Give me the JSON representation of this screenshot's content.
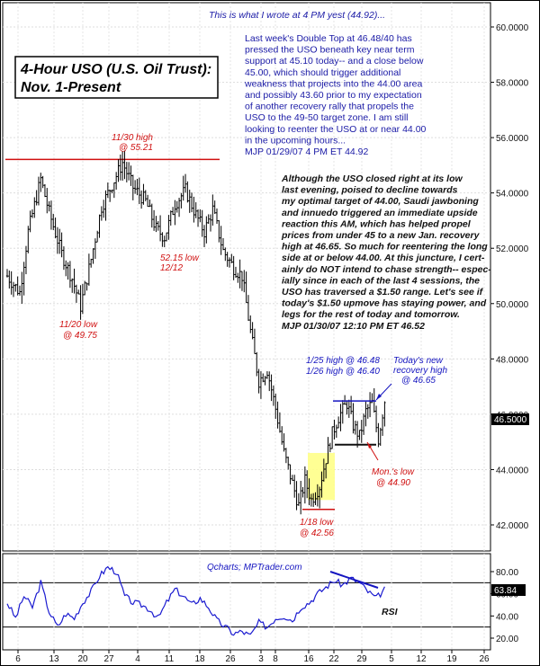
{
  "title": {
    "line1": "4-Hour USO (U.S. Oil Trust):",
    "line2": "Nov. 1-Present"
  },
  "annotation_top": {
    "header": "This is what I wrote at 4 PM yest (44.92)...",
    "lines": [
      "Last week's Double Top at 46.48/40 has",
      "pressed the USO beneath key near term",
      "support at 45.10 today-- and a close below",
      "45.00, which should trigger additional",
      "weakness that projects into the 44.00 area",
      "and possibly 43.60 prior to my expectation",
      "of another recovery rally that propels the",
      "USO to the 49-50 target zone. I am still",
      "looking to reenter the USO at or near 44.00",
      "in the upcoming hours...",
      "MJP  01/29/07 4 PM ET  44.92"
    ]
  },
  "annotation_mid": {
    "lines": [
      "Although the USO closed right at its low",
      "last evening, poised to decline towards",
      "my optimal target of 44.00, Saudi jawboning",
      "and innuedo triggered an immediate upside",
      "reaction this AM, which has helped propel",
      "prices from under 45 to a new Jan. recovery",
      "high at 46.65.  So much for reentering the long",
      "side at or below 44.00. At this juncture, I cert-",
      "ainly do NOT intend to chase strength-- espec-",
      "ially since in each of the last 4 sessions, the",
      "USO has traversed a $1.50 range. Let's see if",
      "today's $1.50 upmove has staying power, and",
      "legs for the rest of today and tomorrow.",
      "MJP  01/30/07 12:10 PM ET  46.52"
    ]
  },
  "labels": {
    "nov30": [
      "11/30 high",
      "@ 55.21"
    ],
    "nov20": [
      "11/20 low",
      "@ 49.75"
    ],
    "dec12": [
      "52.15 low",
      "12/12"
    ],
    "jan18": [
      "1/18 low",
      "@ 42.56"
    ],
    "jan25": [
      "1/25 high @ 46.48",
      "1/26 high @ 46.40"
    ],
    "recovery": [
      "Today's new",
      "recovery high",
      "@ 46.65"
    ],
    "monlow": [
      "Mon.'s low",
      "@ 44.90"
    ],
    "qcharts": "Qcharts; MPTrader.com",
    "rsi": "RSI"
  },
  "colors": {
    "price": "#000000",
    "rsi": "#1a1ad0",
    "red": "#d01010",
    "blue": "#1515c0",
    "flag_fill": "#ffff88"
  },
  "chart_data": [
    {
      "type": "candlestick",
      "title": "4-Hour USO (U.S. Oil Trust): Nov. 1-Present",
      "ylim": [
        41.0,
        61.0
      ],
      "ylabel": "",
      "y_ticks": [
        "42.0000",
        "44.0000",
        "46.0000",
        "48.0000",
        "50.0000",
        "52.0000",
        "54.0000",
        "56.0000",
        "58.0000",
        "60.0000"
      ],
      "last_price": "46.5000",
      "x_ticks": [
        "6",
        "13",
        "20",
        "27",
        "4",
        "11",
        "18",
        "26",
        "3",
        "8",
        "16",
        "22",
        "29",
        "5",
        "12",
        "19",
        "26"
      ],
      "key_levels": [
        {
          "label": "11/30 high",
          "value": 55.21
        },
        {
          "label": "11/20 low",
          "value": 49.75
        },
        {
          "label": "12/12 low",
          "value": 52.15
        },
        {
          "label": "1/18 low",
          "value": 42.56
        },
        {
          "label": "1/25 high",
          "value": 46.48
        },
        {
          "label": "1/26 high",
          "value": 46.4
        },
        {
          "label": "recovery high",
          "value": 46.65
        },
        {
          "label": "Mon.'s low",
          "value": 44.9
        }
      ],
      "anchors": [
        [
          0,
          51.0
        ],
        [
          6,
          50.4
        ],
        [
          10,
          52.6
        ],
        [
          16,
          54.5
        ],
        [
          20,
          53.3
        ],
        [
          26,
          51.8
        ],
        [
          31,
          50.9
        ],
        [
          35,
          49.9
        ],
        [
          40,
          51.6
        ],
        [
          45,
          53.5
        ],
        [
          50,
          54.3
        ],
        [
          55,
          55.1
        ],
        [
          60,
          54.2
        ],
        [
          66,
          53.7
        ],
        [
          71,
          52.7
        ],
        [
          75,
          52.4
        ],
        [
          80,
          53.6
        ],
        [
          85,
          54.1
        ],
        [
          90,
          53.2
        ],
        [
          94,
          52.6
        ],
        [
          98,
          53.4
        ],
        [
          103,
          51.9
        ],
        [
          108,
          51.3
        ],
        [
          112,
          51.0
        ],
        [
          116,
          49.0
        ],
        [
          120,
          47.2
        ],
        [
          124,
          47.6
        ],
        [
          128,
          46.2
        ],
        [
          132,
          44.6
        ],
        [
          136,
          43.5
        ],
        [
          139,
          42.7
        ],
        [
          142,
          43.6
        ],
        [
          145,
          42.9
        ],
        [
          149,
          43.4
        ],
        [
          152,
          44.4
        ],
        [
          155,
          45.3
        ],
        [
          158,
          45.9
        ],
        [
          162,
          46.4
        ],
        [
          165,
          45.6
        ],
        [
          168,
          45.2
        ],
        [
          171,
          46.1
        ],
        [
          174,
          46.4
        ],
        [
          177,
          45.1
        ],
        [
          180,
          46.5
        ]
      ]
    },
    {
      "type": "line",
      "name": "RSI",
      "ylim": [
        15,
        90
      ],
      "y_ticks": [
        "20.00",
        "40.00",
        "60.00",
        "80.00"
      ],
      "last_value": "63.84",
      "levels": [
        30,
        70
      ],
      "anchors": [
        [
          0,
          52
        ],
        [
          4,
          38
        ],
        [
          8,
          58
        ],
        [
          12,
          48
        ],
        [
          16,
          70
        ],
        [
          20,
          44
        ],
        [
          24,
          30
        ],
        [
          28,
          42
        ],
        [
          32,
          38
        ],
        [
          36,
          52
        ],
        [
          40,
          62
        ],
        [
          44,
          76
        ],
        [
          48,
          84
        ],
        [
          52,
          80
        ],
        [
          56,
          58
        ],
        [
          60,
          52
        ],
        [
          64,
          50
        ],
        [
          68,
          46
        ],
        [
          72,
          38
        ],
        [
          76,
          52
        ],
        [
          80,
          64
        ],
        [
          84,
          58
        ],
        [
          88,
          50
        ],
        [
          92,
          56
        ],
        [
          96,
          48
        ],
        [
          100,
          36
        ],
        [
          104,
          30
        ],
        [
          108,
          24
        ],
        [
          112,
          26
        ],
        [
          116,
          22
        ],
        [
          120,
          34
        ],
        [
          124,
          30
        ],
        [
          128,
          38
        ],
        [
          132,
          40
        ],
        [
          136,
          36
        ],
        [
          140,
          48
        ],
        [
          144,
          52
        ],
        [
          148,
          60
        ],
        [
          152,
          66
        ],
        [
          156,
          72
        ],
        [
          160,
          68
        ],
        [
          164,
          74
        ],
        [
          168,
          70
        ],
        [
          172,
          62
        ],
        [
          176,
          56
        ],
        [
          180,
          64
        ]
      ]
    }
  ]
}
